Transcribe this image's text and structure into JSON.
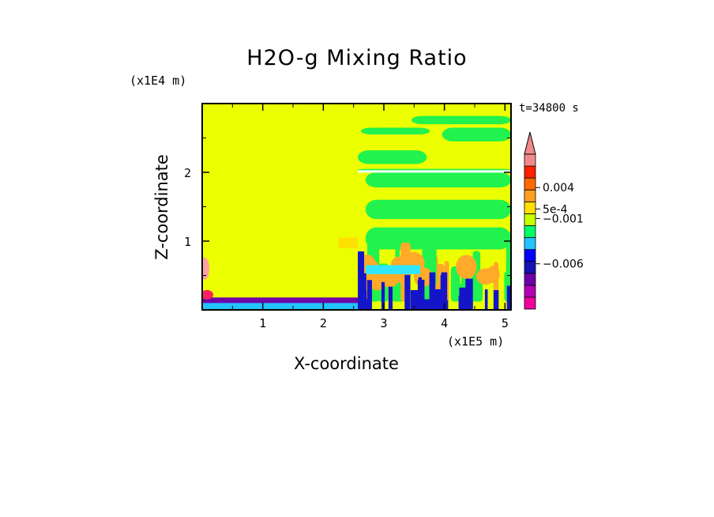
{
  "chart_data": {
    "type": "heatmap",
    "title": "H2O-g Mixing Ratio",
    "xlabel": "X-coordinate",
    "ylabel": "Z-coordinate",
    "x_unit": "(x1E5 m)",
    "z_unit": "(x1E4 m)",
    "time_label": "t=34800 s",
    "xlim": [
      0,
      5.1
    ],
    "ylim": [
      0,
      3.0
    ],
    "x_ticks": [
      1,
      2,
      3,
      4,
      5
    ],
    "y_ticks": [
      1,
      2
    ],
    "x_tick_labels": [
      "1",
      "2",
      "3",
      "4",
      "5"
    ],
    "y_tick_labels": [
      "1",
      "2"
    ],
    "colorbar": {
      "colors": [
        "#f0009e",
        "#b400b4",
        "#6e00a8",
        "#1414b4",
        "#0000ff",
        "#22c4ff",
        "#00ff66",
        "#c8ff00",
        "#ffe000",
        "#ffa020",
        "#ff6a00",
        "#ff2000",
        "#f08a8a"
      ],
      "tick_labels": [
        "0.004",
        "5e-4",
        "−0.001",
        "−0.006"
      ],
      "extend_top": true
    },
    "field_description_colors": {
      "background": "#ebff00",
      "green": "#22f24d",
      "orange": "#ffaa28",
      "cyan": "#30e6ff",
      "blue": "#1414c8"
    }
  }
}
